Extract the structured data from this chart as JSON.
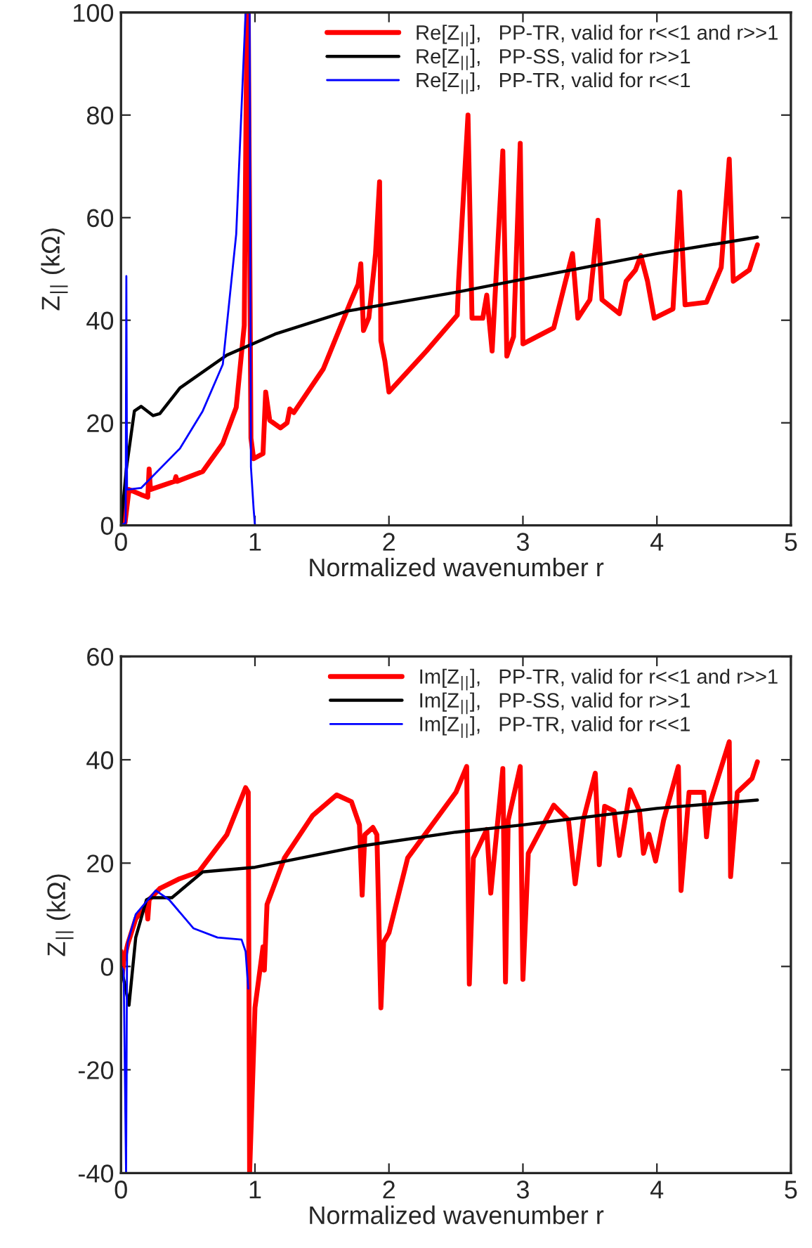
{
  "chart_data": [
    {
      "type": "line",
      "xlabel": "Normalized wavenumber r",
      "ylabel": "Z$_{||}$ (kΩ)",
      "xlim": [
        0,
        5
      ],
      "xticks": [
        0,
        1,
        2,
        3,
        4,
        5
      ],
      "ylim": [
        0,
        100
      ],
      "yticks": [
        0,
        20,
        40,
        60,
        80,
        100
      ],
      "grid": false,
      "legend": "top right",
      "marker": "none",
      "line_style": "solid",
      "series": [
        {
          "name": "Re[Z$_{||}$],   PP-TR, valid for r<<1 and r>>1",
          "color": "#ff0000",
          "x": [
            0,
            0.01,
            0.03,
            0.06,
            0.15,
            0.2,
            0.21,
            0.22,
            0.4,
            0.41,
            0.42,
            0.61,
            0.76,
            0.86,
            0.92,
            0.94,
            0.95,
            0.97,
            0.99,
            1.06,
            1.08,
            1.11,
            1.19,
            1.24,
            1.26,
            1.29,
            1.51,
            1.72,
            1.77,
            1.79,
            1.81,
            1.85,
            1.9,
            1.93,
            1.94,
            1.97,
            2.0,
            2.28,
            2.51,
            2.52,
            2.59,
            2.62,
            2.7,
            2.73,
            2.77,
            2.85,
            2.88,
            2.93,
            2.98,
            3.0,
            3.23,
            3.37,
            3.41,
            3.5,
            3.56,
            3.59,
            3.72,
            3.77,
            3.84,
            3.88,
            3.93,
            3.98,
            4.12,
            4.17,
            4.21,
            4.37,
            4.48,
            4.54,
            4.57,
            4.69,
            4.75
          ],
          "values": [
            0,
            5,
            0.5,
            7,
            6,
            5.5,
            11,
            7,
            8.6,
            9.5,
            8.6,
            10.5,
            16,
            23,
            39,
            100,
            100,
            17,
            13,
            14,
            26,
            20.5,
            19,
            20,
            22.7,
            22,
            30.5,
            44,
            47,
            51,
            38,
            40.5,
            53,
            67,
            36,
            32,
            26,
            34,
            41,
            47.6,
            80,
            40.4,
            40.4,
            44.9,
            34,
            73,
            33,
            36.8,
            74.5,
            35.4,
            38.5,
            53,
            40.4,
            44,
            59.5,
            44,
            41.3,
            47.6,
            49.8,
            52.6,
            47.6,
            40.4,
            42.2,
            65,
            43,
            43.5,
            50.3,
            71.4,
            47.6,
            49.8,
            54.7
          ]
        },
        {
          "name": "Re[Z$_{||}$],   PP-SS, valid for r>>1",
          "color": "#000000",
          "x": [
            0,
            0.04,
            0.1,
            0.15,
            0.24,
            0.29,
            0.44,
            0.79,
            1.15,
            1.69,
            2.51,
            3.0,
            4.0,
            4.75
          ],
          "values": [
            0,
            11,
            22.3,
            23.2,
            21.4,
            21.8,
            26.8,
            33.2,
            37.3,
            41.8,
            45.5,
            48,
            53,
            56.2
          ]
        },
        {
          "name": "Re[Z$_{||}$],   PP-TR, valid for r<<1",
          "color": "#0000ff",
          "x": [
            0,
            0.035,
            0.04,
            0.045,
            0.05,
            0.15,
            0.44,
            0.61,
            0.76,
            0.86,
            0.93,
            0.96,
            0.97,
            0.99,
            1.0
          ],
          "values": [
            0,
            0.5,
            48.6,
            7,
            7,
            7.3,
            15,
            22.3,
            31.4,
            56.8,
            100,
            100,
            11.4,
            3.2,
            0
          ]
        }
      ]
    },
    {
      "type": "line",
      "xlabel": "Normalized wavenumber r",
      "ylabel": "Z$_{||}$ (kΩ)",
      "xlim": [
        0,
        5
      ],
      "xticks": [
        0,
        1,
        2,
        3,
        4,
        5
      ],
      "ylim": [
        -40,
        60
      ],
      "yticks": [
        -40,
        -20,
        0,
        20,
        40,
        60
      ],
      "grid": false,
      "legend": "top right",
      "marker": "none",
      "line_style": "solid",
      "series": [
        {
          "name": "Im[Z$_{||}$],   PP-TR, valid for r<<1 and r>>1",
          "color": "#ff0000",
          "x": [
            0,
            0.01,
            0.02,
            0.05,
            0.11,
            0.19,
            0.2,
            0.21,
            0.29,
            0.43,
            0.58,
            0.79,
            0.93,
            0.95,
            0.96,
            1.0,
            1.06,
            1.07,
            1.09,
            1.22,
            1.43,
            1.61,
            1.72,
            1.78,
            1.8,
            1.82,
            1.88,
            1.91,
            1.94,
            1.96,
            2.0,
            2.14,
            2.5,
            2.58,
            2.6,
            2.63,
            2.73,
            2.76,
            2.85,
            2.87,
            2.89,
            2.98,
            3.0,
            3.04,
            3.23,
            3.34,
            3.39,
            3.45,
            3.54,
            3.57,
            3.61,
            3.68,
            3.72,
            3.8,
            3.87,
            3.9,
            3.94,
            3.99,
            4.05,
            4.16,
            4.18,
            4.24,
            4.35,
            4.37,
            4.4,
            4.54,
            4.55,
            4.6,
            4.71,
            4.75
          ],
          "values": [
            2.9,
            -1.6,
            1,
            4.3,
            9.2,
            12,
            9.2,
            12.9,
            15.1,
            16.9,
            18.3,
            25.5,
            34.6,
            33.7,
            -40,
            -8,
            3.8,
            -0.7,
            12,
            21,
            29.2,
            33.2,
            31.9,
            27.4,
            13.8,
            25.5,
            26.9,
            25.5,
            -8,
            4.7,
            6.5,
            21,
            33.7,
            38.7,
            -3.4,
            21,
            26.5,
            14.2,
            38.3,
            -3,
            28.3,
            38.7,
            -2.5,
            21.9,
            31.2,
            28.3,
            16,
            28.3,
            37.4,
            19.7,
            31,
            30.1,
            21.5,
            34.2,
            30.1,
            21.9,
            25.6,
            20.4,
            28.3,
            38.7,
            14.7,
            33.7,
            33.7,
            25.1,
            31.9,
            43.5,
            17.4,
            33.7,
            36.4,
            39.6
          ]
        },
        {
          "name": "Im[Z$_{||}$],   PP-SS, valid for r>>1",
          "color": "#000000",
          "x": [
            0,
            0.02,
            0.06,
            0.11,
            0.19,
            0.22,
            0.38,
            0.61,
            1.0,
            1.79,
            2.5,
            3.0,
            4.0,
            4.75
          ],
          "values": [
            0,
            -2.5,
            -7.5,
            5.6,
            12.9,
            13.3,
            13.3,
            18.3,
            19.2,
            23.3,
            26,
            27.4,
            30.6,
            32.2
          ]
        },
        {
          "name": "Im[Z$_{||}$],   PP-TR, valid for r<<1",
          "color": "#0000ff",
          "x": [
            0,
            0.02,
            0.038,
            0.045,
            0.05,
            0.11,
            0.26,
            0.36,
            0.54,
            0.72,
            0.9,
            0.93,
            0.95
          ],
          "values": [
            0,
            -0.7,
            -40,
            2,
            4.7,
            10.1,
            14.7,
            12.9,
            7.4,
            5.6,
            5.2,
            2.9,
            -4.3
          ]
        }
      ]
    }
  ]
}
